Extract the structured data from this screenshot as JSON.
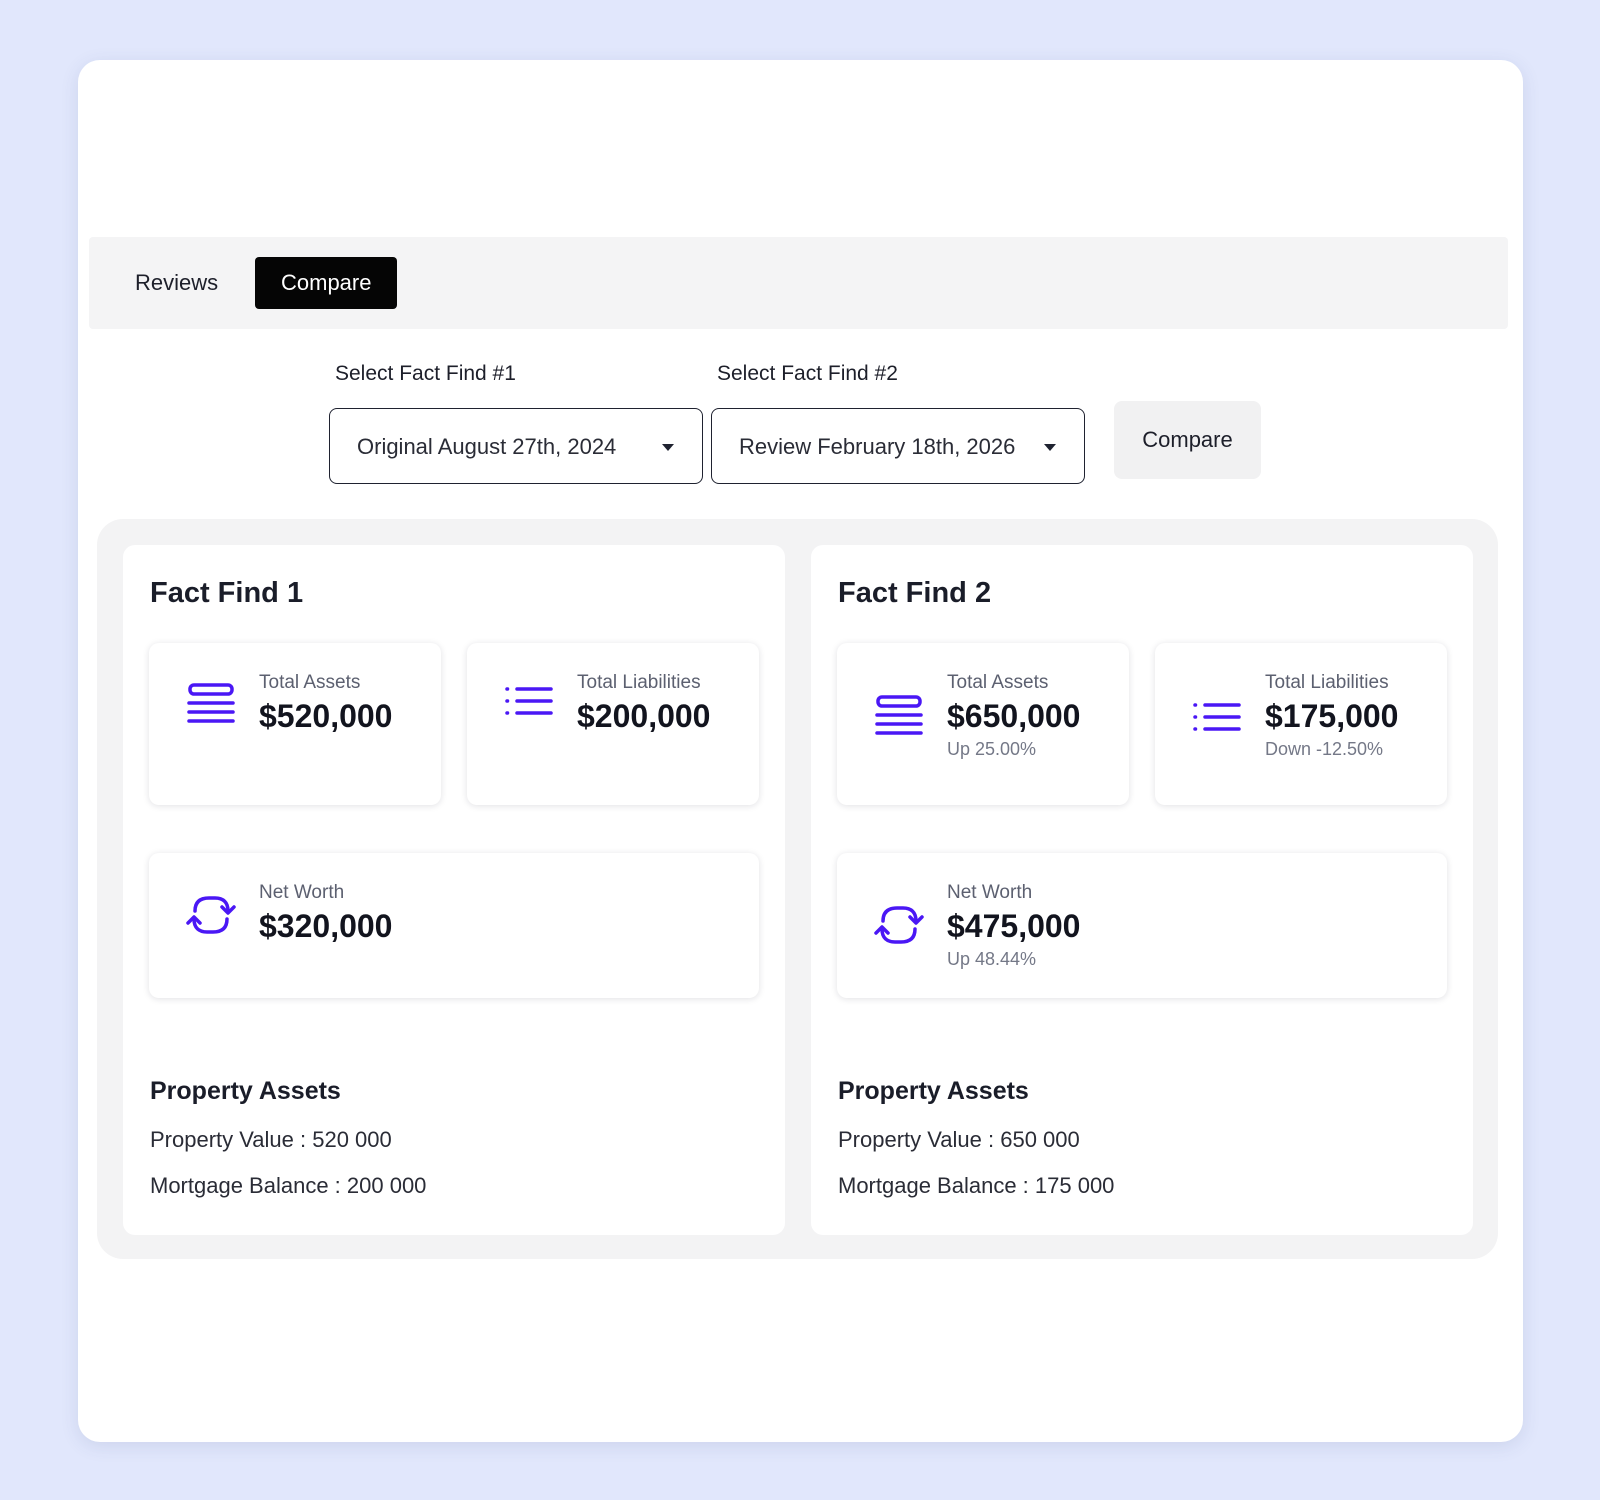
{
  "tabs": {
    "reviews": "Reviews",
    "compare": "Compare"
  },
  "selectors": {
    "ff1": {
      "label": "Select Fact Find #1",
      "value": "Original August 27th, 2024"
    },
    "ff2": {
      "label": "Select Fact Find #2",
      "value": "Review February 18th, 2026"
    },
    "compare_button": "Compare"
  },
  "fact_finds": [
    {
      "title": "Fact Find 1",
      "total_assets": {
        "label": "Total Assets",
        "value": "$520,000",
        "change": ""
      },
      "total_liabilities": {
        "label": "Total Liabilities",
        "value": "$200,000",
        "change": ""
      },
      "net_worth": {
        "label": "Net Worth",
        "value": "$320,000",
        "change": ""
      },
      "property": {
        "title": "Property Assets",
        "value_line": "Property Value : 520 000",
        "mortgage_line": "Mortgage Balance : 200 000"
      }
    },
    {
      "title": "Fact Find 2",
      "total_assets": {
        "label": "Total Assets",
        "value": "$650,000",
        "change": "Up 25.00%"
      },
      "total_liabilities": {
        "label": "Total Liabilities",
        "value": "$175,000",
        "change": "Down -12.50%"
      },
      "net_worth": {
        "label": "Net Worth",
        "value": "$475,000",
        "change": "Up 48.44%"
      },
      "property": {
        "title": "Property Assets",
        "value_line": "Property Value : 650 000",
        "mortgage_line": "Mortgage Balance : 175 000"
      }
    }
  ],
  "icons": {
    "assets": "stacked-lines-icon",
    "liabilities": "list-icon",
    "net_worth": "refresh-icon"
  },
  "colors": {
    "accent": "#4a17f5",
    "background": "#e1e7fc",
    "active_tab": "#050505"
  }
}
